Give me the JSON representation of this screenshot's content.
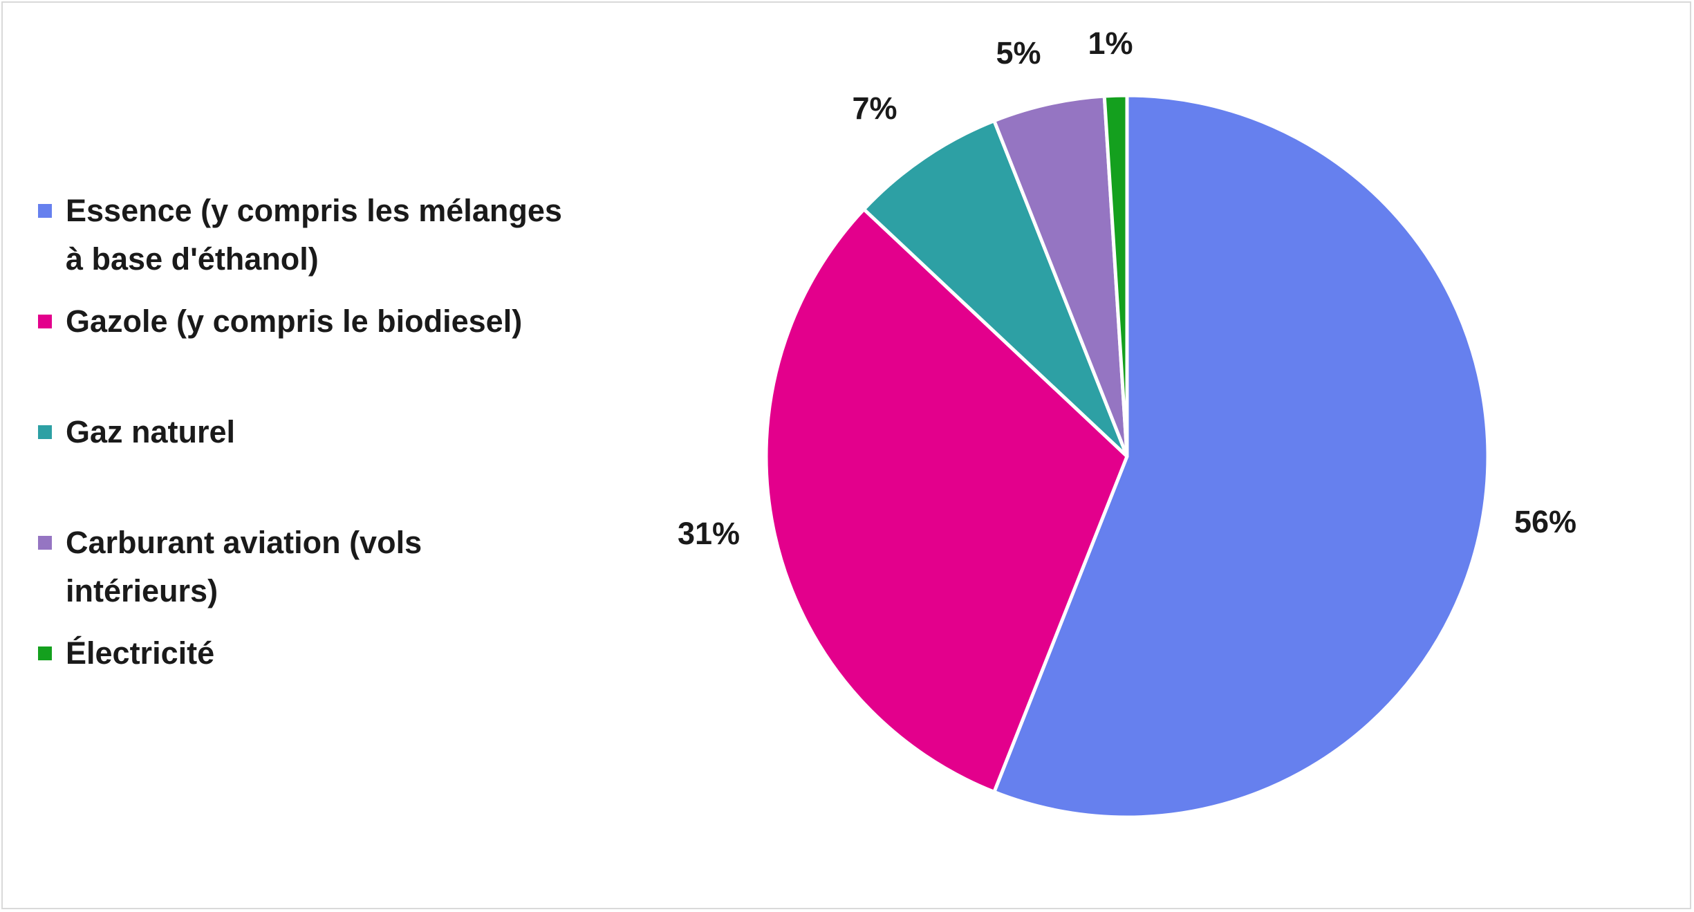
{
  "chart_data": {
    "type": "pie",
    "categories": [
      "Essence (y compris les mélanges à base d'éthanol)",
      "Gazole (y compris le biodiesel)",
      "Gaz naturel",
      "Carburant aviation (vols intérieurs)",
      "Électricité"
    ],
    "values": [
      56,
      31,
      7,
      5,
      1
    ],
    "value_labels": [
      "56%",
      "31%",
      "7%",
      "5%",
      "1%"
    ],
    "colors": [
      "#6680EE",
      "#E3008C",
      "#2DA0A4",
      "#9575C2",
      "#14A01E"
    ],
    "legend_placement": "left"
  }
}
